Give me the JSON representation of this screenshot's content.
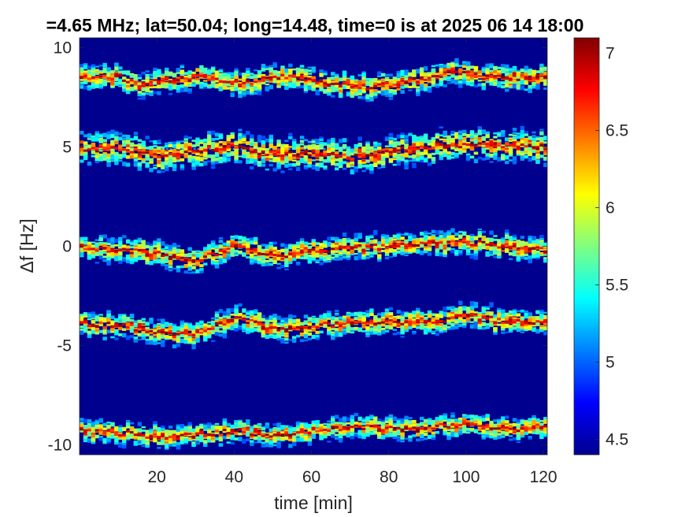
{
  "chart_data": {
    "type": "heatmap",
    "title": "=4.65 MHz;  lat=50.04; long=14.48, time=0 is at 2025 06 14 18:00",
    "xlabel": "time [min]",
    "ylabel": "Δf [Hz]",
    "xlim": [
      0,
      121
    ],
    "ylim": [
      -10.5,
      10.5
    ],
    "x_ticks": [
      20,
      40,
      60,
      80,
      100,
      120
    ],
    "x_tick_labels": [
      "20",
      "40",
      "60",
      "80",
      "100",
      "120"
    ],
    "y_ticks": [
      10,
      5,
      0,
      -5,
      -10
    ],
    "y_tick_labels": [
      "10",
      "5",
      "0",
      "-5",
      "-10"
    ],
    "grid": false,
    "colormap": "jet",
    "colorbar": {
      "range": [
        4.4,
        7.1
      ],
      "ticks": [
        4.5,
        5,
        5.5,
        6,
        6.5,
        7
      ],
      "tick_labels": [
        "4.5",
        "5",
        "5.5",
        "6",
        "6.5",
        "7"
      ]
    },
    "background_value": 4.4,
    "traces": [
      {
        "center_hz": [
          [
            0,
            8.5
          ],
          [
            10,
            8.5
          ],
          [
            15,
            8.1
          ],
          [
            20,
            8.3
          ],
          [
            30,
            8.5
          ],
          [
            40,
            8.2
          ],
          [
            50,
            8.5
          ],
          [
            55,
            8.6
          ],
          [
            65,
            8.2
          ],
          [
            75,
            8.0
          ],
          [
            85,
            8.3
          ],
          [
            95,
            8.8
          ],
          [
            105,
            8.5
          ],
          [
            121,
            8.5
          ]
        ],
        "spread_hz": 0.9
      },
      {
        "center_hz": [
          [
            0,
            4.9
          ],
          [
            10,
            4.9
          ],
          [
            20,
            4.6
          ],
          [
            30,
            4.8
          ],
          [
            40,
            5.0
          ],
          [
            50,
            4.6
          ],
          [
            60,
            4.7
          ],
          [
            70,
            4.5
          ],
          [
            80,
            4.8
          ],
          [
            90,
            5.0
          ],
          [
            100,
            5.1
          ],
          [
            110,
            5.0
          ],
          [
            121,
            5.0
          ]
        ],
        "spread_hz": 1.2,
        "flat_line_hz": 4.9
      },
      {
        "center_hz": [
          [
            0,
            -0.1
          ],
          [
            10,
            -0.2
          ],
          [
            20,
            -0.4
          ],
          [
            30,
            -0.7
          ],
          [
            40,
            0.0
          ],
          [
            50,
            -0.5
          ],
          [
            60,
            -0.2
          ],
          [
            70,
            -0.1
          ],
          [
            80,
            0.0
          ],
          [
            90,
            0.1
          ],
          [
            100,
            0.2
          ],
          [
            110,
            0.0
          ],
          [
            121,
            -0.2
          ]
        ],
        "spread_hz": 0.9
      },
      {
        "center_hz": [
          [
            0,
            -3.9
          ],
          [
            10,
            -4.0
          ],
          [
            20,
            -4.3
          ],
          [
            30,
            -4.4
          ],
          [
            40,
            -3.6
          ],
          [
            50,
            -4.2
          ],
          [
            60,
            -4.0
          ],
          [
            70,
            -3.9
          ],
          [
            80,
            -3.8
          ],
          [
            90,
            -3.8
          ],
          [
            100,
            -3.5
          ],
          [
            110,
            -3.8
          ],
          [
            121,
            -3.9
          ]
        ],
        "spread_hz": 0.9
      },
      {
        "center_hz": [
          [
            0,
            -9.3
          ],
          [
            10,
            -9.4
          ],
          [
            20,
            -9.6
          ],
          [
            30,
            -9.5
          ],
          [
            40,
            -9.3
          ],
          [
            50,
            -9.5
          ],
          [
            60,
            -9.3
          ],
          [
            70,
            -9.1
          ],
          [
            80,
            -9.2
          ],
          [
            90,
            -9.1
          ],
          [
            100,
            -9.0
          ],
          [
            110,
            -9.2
          ],
          [
            121,
            -9.1
          ]
        ],
        "spread_hz": 0.8
      }
    ]
  }
}
